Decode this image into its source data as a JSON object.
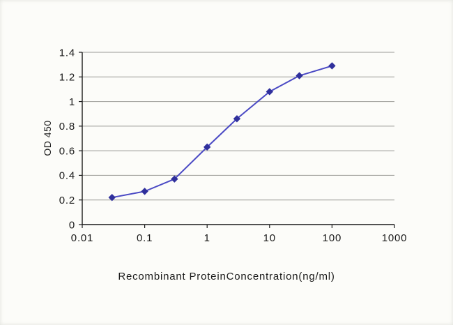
{
  "chart_data": {
    "type": "line",
    "title": "",
    "xlabel": "Recombinant ProteinConcentration(ng/ml)",
    "ylabel": "OD 450",
    "xscale": "log",
    "xlim": [
      0.01,
      1000
    ],
    "ylim": [
      0,
      1.4
    ],
    "xticks": [
      0.01,
      0.1,
      1,
      10,
      100,
      1000
    ],
    "xtick_labels": [
      "0.01",
      "0.1",
      "1",
      "10",
      "100",
      "1000"
    ],
    "yticks": [
      0,
      0.2,
      0.4,
      0.6,
      0.8,
      1,
      1.2,
      1.4
    ],
    "ytick_labels": [
      "0",
      "0.2",
      "0.4",
      "0.6",
      "0.8",
      "1",
      "1.2",
      "1.4"
    ],
    "grid": "horizontal",
    "legend": "none",
    "series": [
      {
        "name": "OD 450 vs concentration",
        "x": [
          0.03,
          0.1,
          0.3,
          1,
          3,
          10,
          30,
          100
        ],
        "y": [
          0.22,
          0.27,
          0.37,
          0.63,
          0.86,
          1.08,
          1.21,
          1.29
        ],
        "marker": "diamond",
        "line_color": "#4a49c4",
        "marker_color": "#30309c"
      }
    ],
    "gridline_color": "#9a9a96",
    "axis_color": "#1a1a1a"
  }
}
